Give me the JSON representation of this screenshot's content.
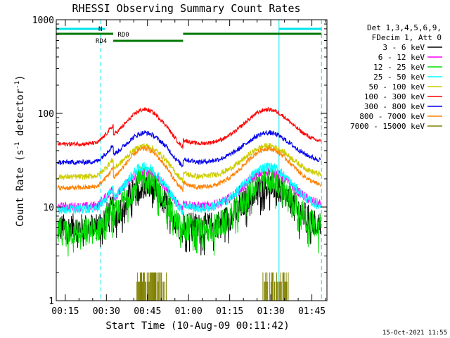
{
  "chart_data": {
    "type": "line",
    "title": "RHESSI Observing Summary Count Rates",
    "xlabel": "Start Time (10-Aug-09 00:11:42)",
    "ylabel_main": "Count Rate (s",
    "ylabel_sup1": "-1",
    "ylabel_mid": " detector",
    "ylabel_sup2": "-1",
    "ylabel_end": ")",
    "yscale": "log",
    "ylim": [
      1,
      1000
    ],
    "xlim_minutes": [
      11.7,
      110.5
    ],
    "x_ticks": [
      {
        "t": 15,
        "label": "00:15"
      },
      {
        "t": 30,
        "label": "00:30"
      },
      {
        "t": 45,
        "label": "00:45"
      },
      {
        "t": 60,
        "label": "01:00"
      },
      {
        "t": 75,
        "label": "01:15"
      },
      {
        "t": 90,
        "label": "01:30"
      },
      {
        "t": 105,
        "label": "01:45"
      }
    ],
    "y_ticks": [
      {
        "v": 1,
        "label": "1"
      },
      {
        "v": 10,
        "label": "10"
      },
      {
        "v": 100,
        "label": "100"
      },
      {
        "v": 1000,
        "label": "1000"
      }
    ],
    "legend_header": [
      "Det 1,3,4,5,6,9,",
      "FDecim 1, Att 0"
    ],
    "series": [
      {
        "name": "3 - 6 keV",
        "color": "#000000",
        "base": 6,
        "peak": 17,
        "noise": 0.35
      },
      {
        "name": "6 - 12 keV",
        "color": "#ff00ff",
        "base": 10,
        "peak": 24,
        "noise": 0.12
      },
      {
        "name": "12 - 25 keV",
        "color": "#00dd00",
        "base": 5.5,
        "peak": 20,
        "noise": 0.35
      },
      {
        "name": "25 - 50 keV",
        "color": "#00ffff",
        "base": 9.5,
        "peak": 27,
        "noise": 0.12
      },
      {
        "name": "50 - 100 keV",
        "color": "#cccc00",
        "base": 21,
        "peak": 45,
        "noise": 0.07
      },
      {
        "name": "100 - 300 keV",
        "color": "#ff0000",
        "base": 47,
        "peak": 110,
        "noise": 0.05
      },
      {
        "name": "300 - 800 keV",
        "color": "#0000ee",
        "base": 30,
        "peak": 62,
        "noise": 0.06
      },
      {
        "name": "800 - 7000 keV",
        "color": "#ff8000",
        "base": 16,
        "peak": 42,
        "noise": 0.06
      },
      {
        "name": "7000 - 15000 keV",
        "color": "#808000",
        "base": 1,
        "peak": 2,
        "noise": 0
      }
    ],
    "cyan_lines_minutes": [
      11.7,
      28.0,
      93.0,
      108.5
    ],
    "night_bars": [
      {
        "label": "N",
        "from": 11.7,
        "to": 29.5
      },
      {
        "label": "",
        "from": 93.0,
        "to": 108.5
      }
    ],
    "saa_bars": [
      {
        "label": "RD4",
        "from": 11.7,
        "to": 32.5,
        "level": "upper"
      },
      {
        "label": "",
        "from": 32.5,
        "to": 58.0,
        "level": "lower"
      },
      {
        "label": "RD0",
        "from": 58.0,
        "to": 108.5,
        "level": "upper"
      }
    ],
    "footer_date": "15-Oct-2021 11:55",
    "colors": {
      "axis": "#000000",
      "cyan": "#00e5ee",
      "green_bar": "#007700"
    }
  }
}
